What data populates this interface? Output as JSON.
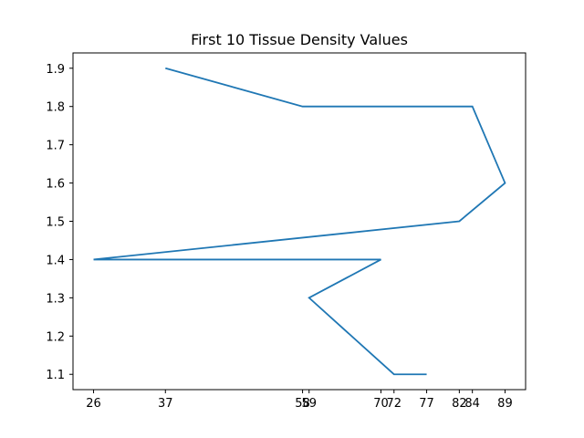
{
  "chart_data": {
    "type": "line",
    "title": "First 10 Tissue Density Values",
    "xlabel": "",
    "ylabel": "",
    "grid": false,
    "legend": "none",
    "x_ticks": [
      "26",
      "37",
      "58",
      "59",
      "70",
      "72",
      "77",
      "82",
      "84",
      "89"
    ],
    "y_ticks": [
      "1.1",
      "1.2",
      "1.3",
      "1.4",
      "1.5",
      "1.6",
      "1.7",
      "1.8",
      "1.9"
    ],
    "xlim": [
      22.85,
      92.15
    ],
    "ylim": [
      1.06,
      1.94
    ],
    "series": [
      {
        "color": "#1f77b4",
        "points": [
          {
            "x": 37,
            "y": 1.9
          },
          {
            "x": 58,
            "y": 1.8
          },
          {
            "x": 84,
            "y": 1.8
          },
          {
            "x": 89,
            "y": 1.6
          },
          {
            "x": 82,
            "y": 1.5
          },
          {
            "x": 26,
            "y": 1.4
          },
          {
            "x": 70,
            "y": 1.4
          },
          {
            "x": 59,
            "y": 1.3
          },
          {
            "x": 72,
            "y": 1.1
          },
          {
            "x": 77,
            "y": 1.1
          }
        ]
      }
    ]
  }
}
